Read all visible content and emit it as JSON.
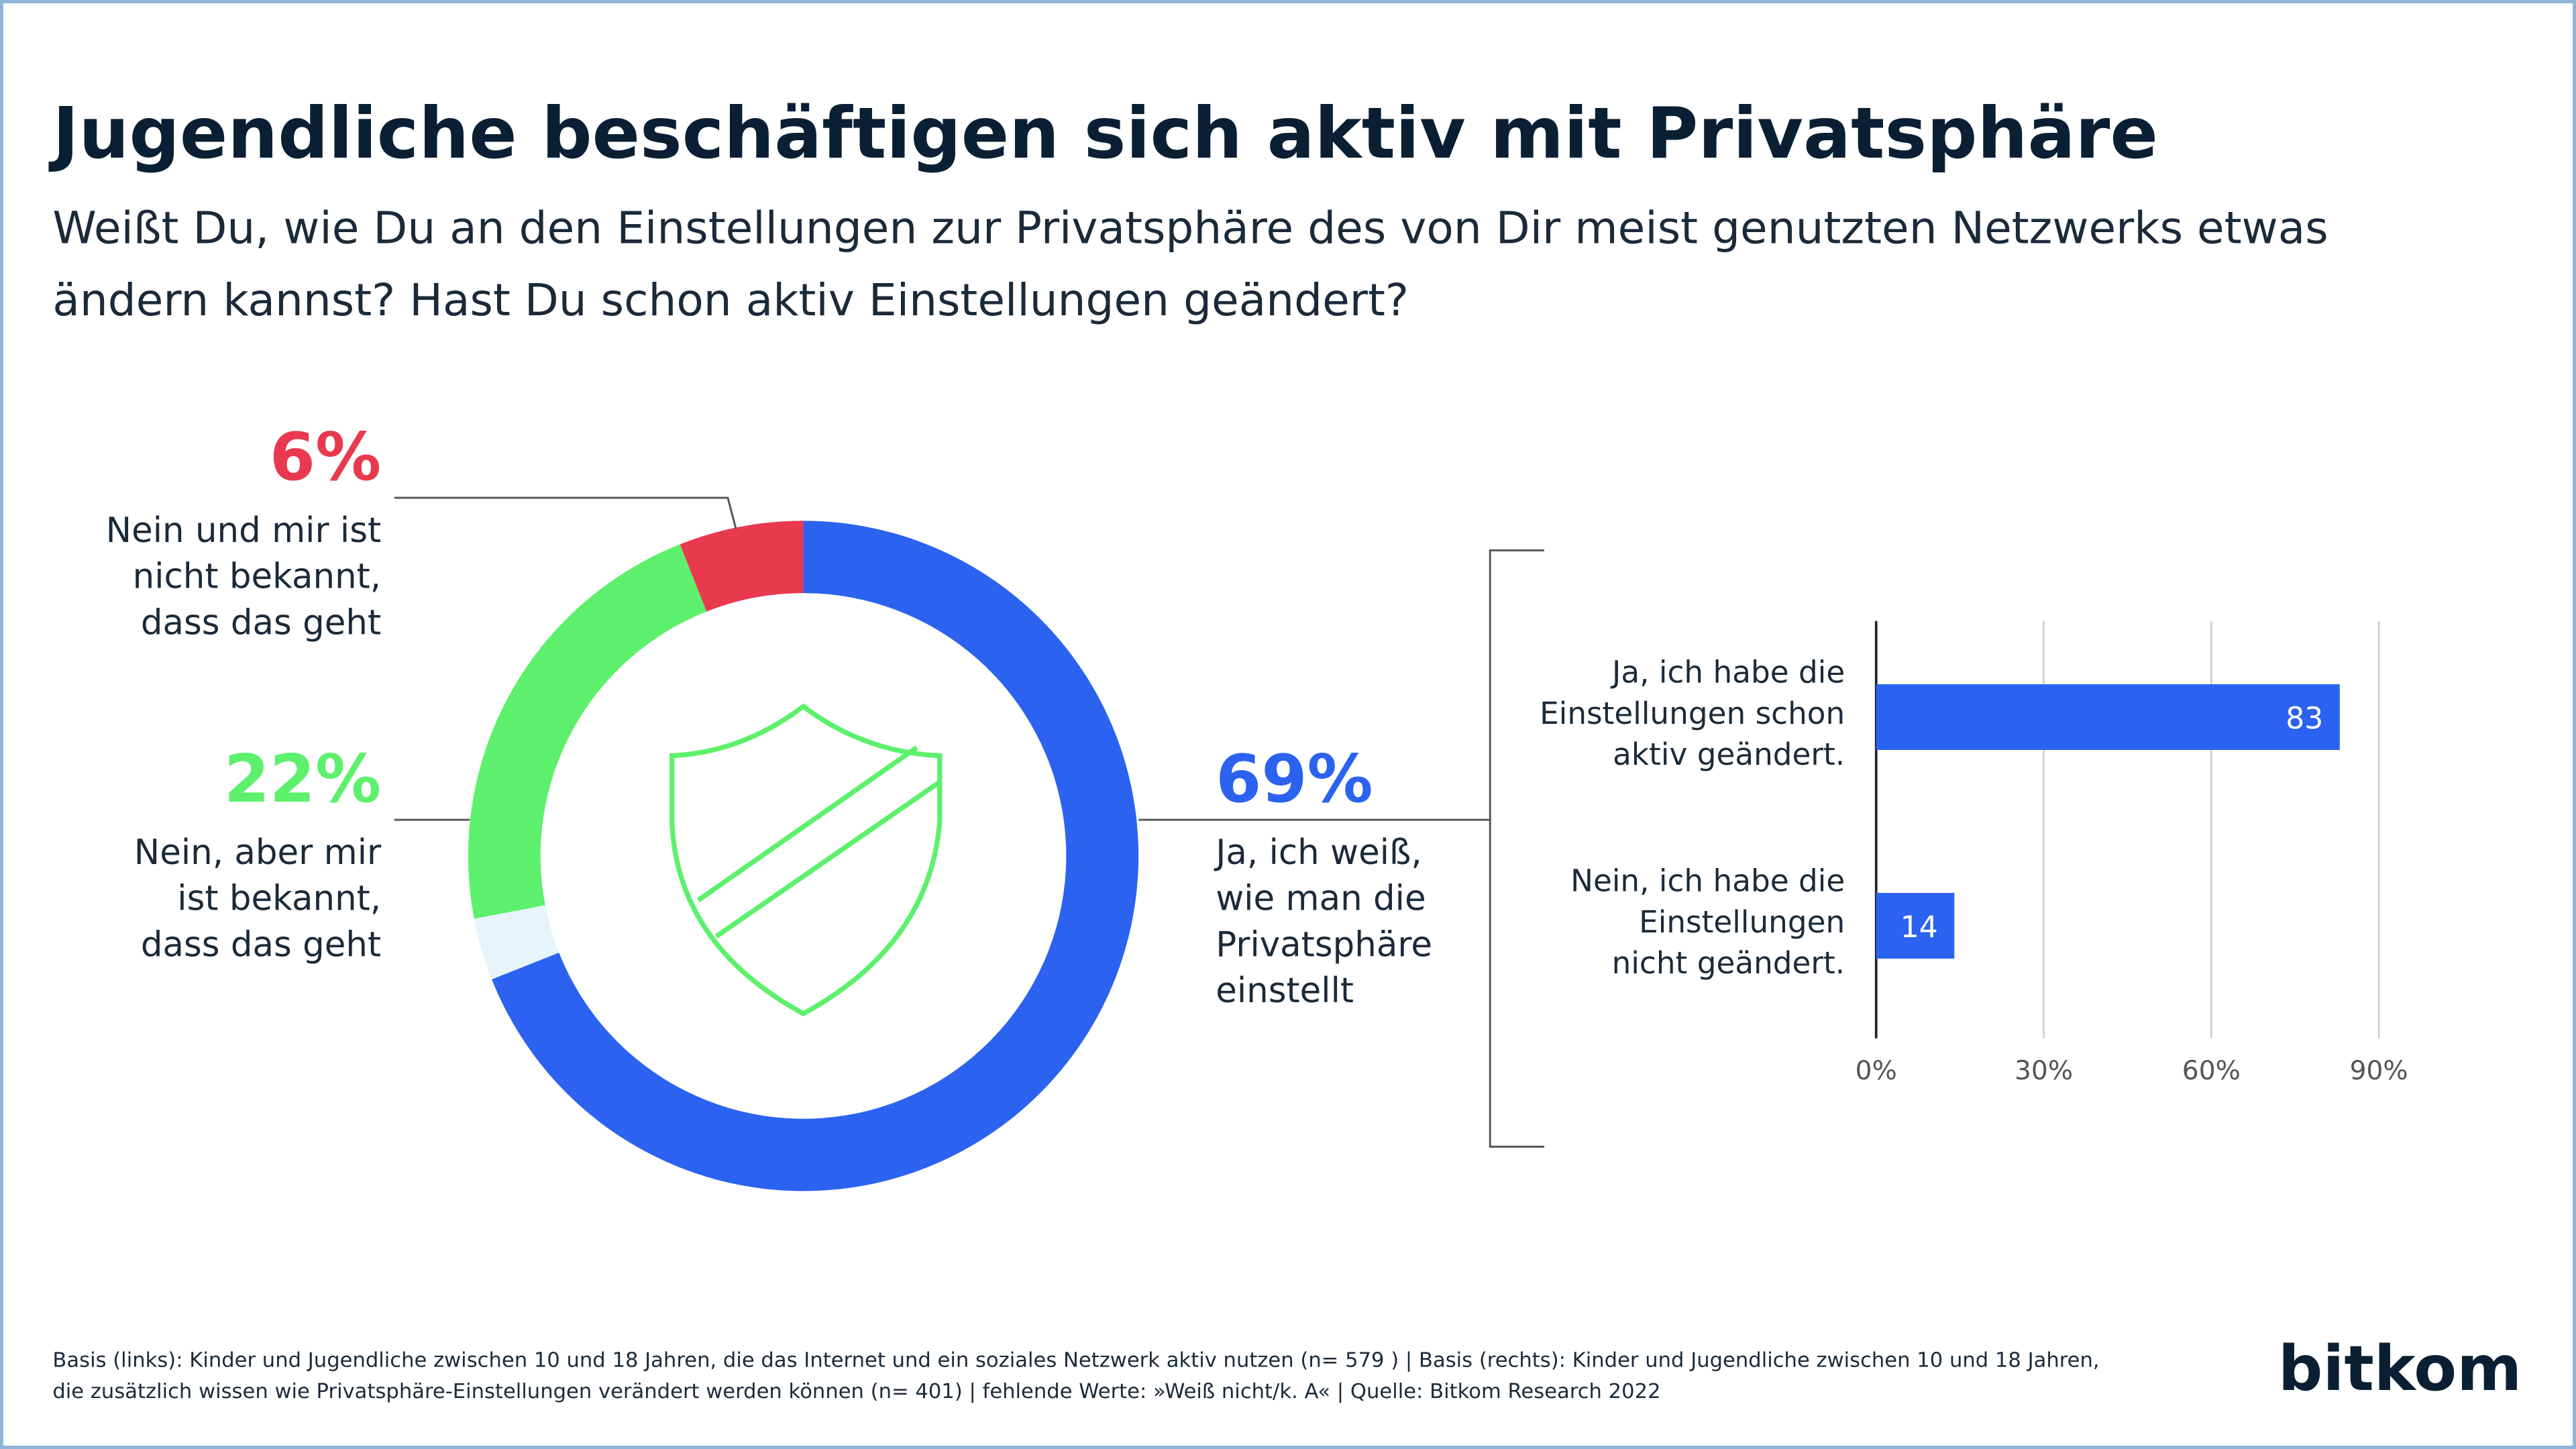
{
  "title": "Jugendliche beschäftigen sich aktiv mit Privatsphäre",
  "subtitle": "Weißt Du, wie Du an den Einstellungen zur Privatsphäre des von Dir meist genutzten Netzwerks etwas\nändern kannst? Hast Du schon aktiv Einstellungen geändert?",
  "chart_data": [
    {
      "type": "donut",
      "categories": [
        "Ja, ich weiß,\nwie man die\nPrivatsphäre\neinstellt",
        null,
        "Nein, aber mir\nist bekannt,\ndass das geht",
        "Nein und mir ist\nnicht bekannt,\ndass das geht"
      ],
      "values": [
        69,
        3,
        22,
        6
      ],
      "value_labels": [
        "69%",
        null,
        "22%",
        "6%"
      ],
      "colors": [
        "#2b63f0",
        "#e6f4fb",
        "#5df06c",
        "#e8394f"
      ]
    },
    {
      "type": "bar",
      "orientation": "horizontal",
      "categories": [
        "Ja, ich habe die\nEinstellungen schon\naktiv geändert.",
        "Nein, ich habe die\nEinstellungen\nnicht geändert."
      ],
      "values": [
        83,
        14
      ],
      "color": "#2b63f0",
      "xlim": [
        0,
        90
      ],
      "xticks": [
        {
          "value": 0,
          "label": "0%"
        },
        {
          "value": 30,
          "label": "30%"
        },
        {
          "value": 60,
          "label": "60%"
        },
        {
          "value": 90,
          "label": "90%"
        }
      ],
      "grid": true
    }
  ],
  "footnote": "Basis (links): Kinder und Jugendliche zwischen 10 und 18 Jahren, die das Internet und ein soziales Netzwerk aktiv nutzen (n= 579 ) | Basis (rechts): Kinder und Jugendliche zwischen 10 und 18 Jahren,\ndie zusätzlich wissen wie Privatsphäre-Einstellungen verändert werden können (n= 401) | fehlende Werte: »Weiß nicht/k. A« | Quelle: Bitkom Research 2022",
  "logo": "bitkom"
}
